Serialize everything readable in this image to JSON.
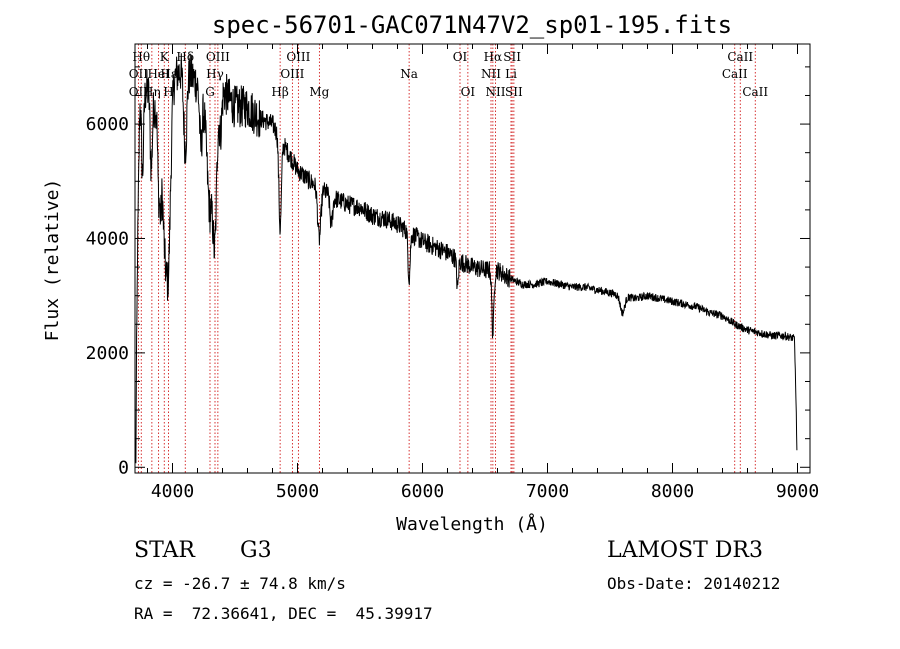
{
  "chart_data": {
    "type": "line",
    "title": "spec-56701-GAC071N47V2_sp01-195.fits",
    "xlabel": "Wavelength (Å)",
    "ylabel": "Flux (relative)",
    "xlim": [
      3700,
      9100
    ],
    "ylim": [
      -100,
      7400
    ],
    "x_ticks": [
      4000,
      5000,
      6000,
      7000,
      8000,
      9000
    ],
    "x_tick_labels": [
      "4000",
      "5000",
      "6000",
      "7000",
      "8000",
      "9000"
    ],
    "y_ticks": [
      0,
      2000,
      4000,
      6000
    ],
    "y_tick_labels": [
      "0",
      "2000",
      "4000",
      "6000"
    ],
    "continuum": [
      [
        3705,
        100
      ],
      [
        3712,
        3000
      ],
      [
        3720,
        5600
      ],
      [
        3740,
        6500
      ],
      [
        3800,
        6600
      ],
      [
        3860,
        6300
      ],
      [
        3900,
        6500
      ],
      [
        3960,
        6500
      ],
      [
        4000,
        6800
      ],
      [
        4100,
        7000
      ],
      [
        4200,
        6700
      ],
      [
        4300,
        6400
      ],
      [
        4400,
        6600
      ],
      [
        4500,
        6300
      ],
      [
        4600,
        6300
      ],
      [
        4700,
        6100
      ],
      [
        4800,
        6000
      ],
      [
        4900,
        5600
      ],
      [
        5000,
        5200
      ],
      [
        5100,
        5000
      ],
      [
        5200,
        4850
      ],
      [
        5300,
        4700
      ],
      [
        5400,
        4600
      ],
      [
        5500,
        4550
      ],
      [
        5600,
        4400
      ],
      [
        5700,
        4350
      ],
      [
        5800,
        4250
      ],
      [
        5900,
        4100
      ],
      [
        6000,
        3950
      ],
      [
        6100,
        3850
      ],
      [
        6200,
        3750
      ],
      [
        6300,
        3600
      ],
      [
        6400,
        3500
      ],
      [
        6500,
        3450
      ],
      [
        6600,
        3450
      ],
      [
        6700,
        3300
      ],
      [
        6800,
        3200
      ],
      [
        6900,
        3200
      ],
      [
        7000,
        3250
      ],
      [
        7100,
        3200
      ],
      [
        7200,
        3150
      ],
      [
        7300,
        3150
      ],
      [
        7400,
        3100
      ],
      [
        7500,
        3050
      ],
      [
        7600,
        3000
      ],
      [
        7700,
        2950
      ],
      [
        7800,
        3000
      ],
      [
        7900,
        2950
      ],
      [
        8000,
        2900
      ],
      [
        8100,
        2850
      ],
      [
        8200,
        2800
      ],
      [
        8300,
        2700
      ],
      [
        8400,
        2650
      ],
      [
        8500,
        2500
      ],
      [
        8600,
        2400
      ],
      [
        8700,
        2350
      ],
      [
        8800,
        2300
      ],
      [
        8900,
        2300
      ],
      [
        8975,
        2250
      ],
      [
        8985,
        1500
      ],
      [
        8995,
        300
      ]
    ],
    "absorption_features": [
      [
        3934,
        2200,
        25
      ],
      [
        3968,
        2800,
        25
      ],
      [
        3720,
        1800,
        12
      ],
      [
        3760,
        1400,
        12
      ],
      [
        3830,
        1200,
        12
      ],
      [
        3889,
        1500,
        12
      ],
      [
        3905,
        1300,
        10
      ],
      [
        4102,
        1400,
        18
      ],
      [
        4227,
        1000,
        15
      ],
      [
        4300,
        1900,
        35
      ],
      [
        4340,
        2100,
        20
      ],
      [
        4384,
        700,
        15
      ],
      [
        4861,
        1600,
        14
      ],
      [
        5174,
        900,
        18
      ],
      [
        5270,
        500,
        15
      ],
      [
        5893,
        800,
        12
      ],
      [
        6280,
        500,
        10
      ],
      [
        6563,
        1100,
        12
      ],
      [
        7600,
        300,
        25
      ]
    ],
    "lines": [
      {
        "name": "OII",
        "wavelength": 3727,
        "row": 2
      },
      {
        "name": "Hθ",
        "wavelength": 3750,
        "row": 1
      },
      {
        "name": "OII",
        "wavelength": 3727,
        "row": 3
      },
      {
        "name": "Hη",
        "wavelength": 3835,
        "row": 3
      },
      {
        "name": "HeI",
        "wavelength": 3889,
        "row": 2
      },
      {
        "name": "K",
        "wavelength": 3934,
        "row": 1
      },
      {
        "name": "H",
        "wavelength": 3968,
        "row": 3
      },
      {
        "name": "Hε",
        "wavelength": 3970,
        "row": 2
      },
      {
        "name": "Hδ",
        "wavelength": 4102,
        "row": 1
      },
      {
        "name": "G",
        "wavelength": 4300,
        "row": 3
      },
      {
        "name": "OIII",
        "wavelength": 4363,
        "row": 1
      },
      {
        "name": "Hγ",
        "wavelength": 4340,
        "row": 2
      },
      {
        "name": "Hβ",
        "wavelength": 4861,
        "row": 3
      },
      {
        "name": "OIII",
        "wavelength": 5007,
        "row": 1
      },
      {
        "name": "OIII",
        "wavelength": 4959,
        "row": 2
      },
      {
        "name": "Mg",
        "wavelength": 5175,
        "row": 3
      },
      {
        "name": "Na",
        "wavelength": 5893,
        "row": 2
      },
      {
        "name": "OI",
        "wavelength": 6300,
        "row": 1
      },
      {
        "name": "OI",
        "wavelength": 6363,
        "row": 3
      },
      {
        "name": "Hα",
        "wavelength": 6563,
        "row": 1
      },
      {
        "name": "NII",
        "wavelength": 6548,
        "row": 2
      },
      {
        "name": "NII",
        "wavelength": 6584,
        "row": 3
      },
      {
        "name": "SII",
        "wavelength": 6717,
        "row": 1
      },
      {
        "name": "Li",
        "wavelength": 6708,
        "row": 2
      },
      {
        "name": "SII",
        "wavelength": 6731,
        "row": 3
      },
      {
        "name": "CaII",
        "wavelength": 8542,
        "row": 1
      },
      {
        "name": "CaII",
        "wavelength": 8498,
        "row": 2
      },
      {
        "name": "CaII",
        "wavelength": 8662,
        "row": 3
      }
    ]
  },
  "info": {
    "object_class": "STAR",
    "subclass": "G3",
    "survey": "LAMOST DR3",
    "redshift": "cz = -26.7 ± 74.8 km/s",
    "obs_date": "Obs-Date: 20140212",
    "coords": "RA =  72.36641, DEC =  45.39917"
  },
  "colors": {
    "axis": "#000000",
    "spectrum": "#000000",
    "line_marker": "#cc0000"
  }
}
